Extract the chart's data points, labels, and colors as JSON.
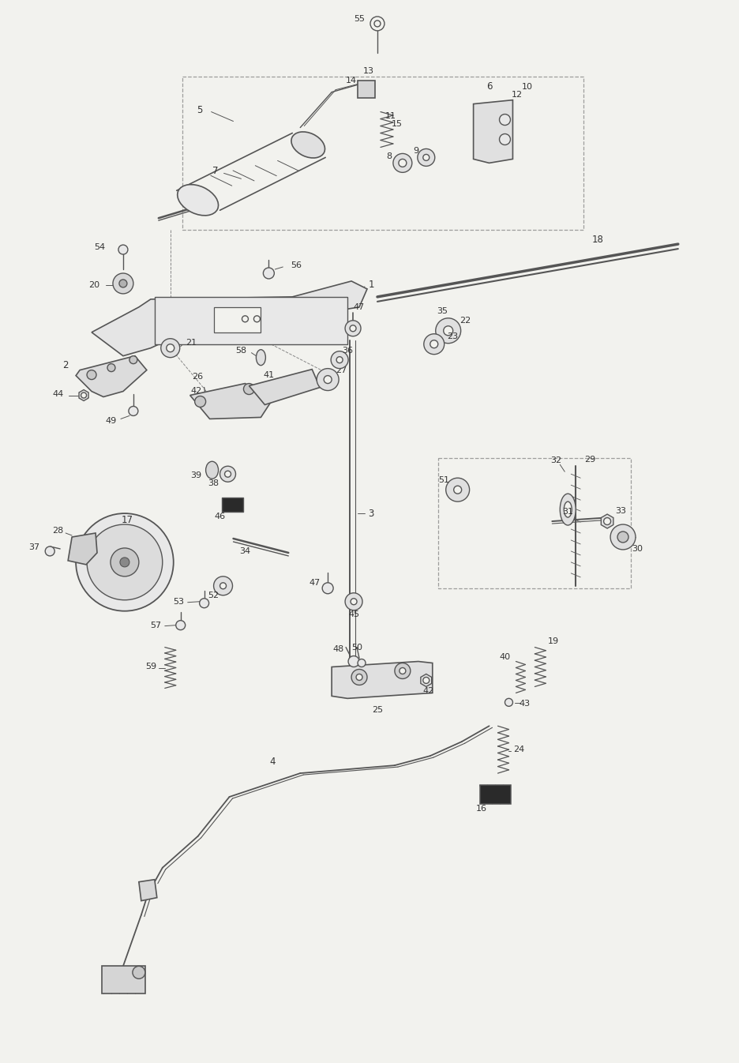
{
  "bg_color": "#f2f2ee",
  "lc": "#555555",
  "dc": "#888888",
  "lbc": "#333333",
  "dark": "#2a2a2a",
  "fig_width": 9.36,
  "fig_height": 13.46,
  "dpi": 100
}
